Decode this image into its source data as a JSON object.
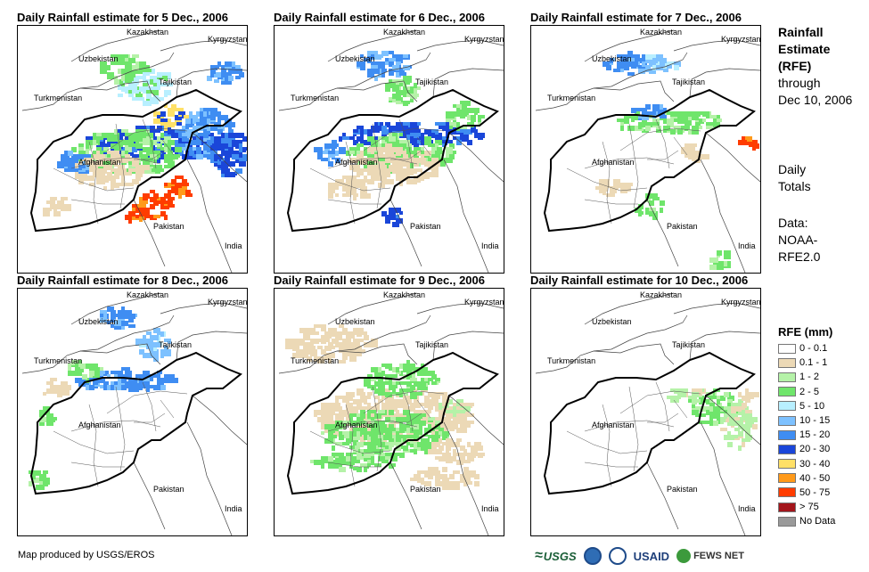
{
  "panels": [
    {
      "title": "Daily Rainfall estimate for 5 Dec., 2006",
      "rain_level": "heavy"
    },
    {
      "title": "Daily Rainfall estimate for 6 Dec., 2006",
      "rain_level": "moderate"
    },
    {
      "title": "Daily Rainfall estimate for 7 Dec., 2006",
      "rain_level": "light"
    },
    {
      "title": "Daily Rainfall estimate for 8 Dec., 2006",
      "rain_level": "light"
    },
    {
      "title": "Daily Rainfall estimate for 9 Dec., 2006",
      "rain_level": "widespread-light"
    },
    {
      "title": "Daily Rainfall estimate for 10 Dec., 2006",
      "rain_level": "minimal"
    }
  ],
  "country_labels": {
    "kazakhstan": "Kazakhstan",
    "kyrgyzstan": "Kyrgyzstan",
    "uzbekistan": "Uzbekistan",
    "tajikistan": "Tajikistan",
    "turkmenistan": "Turkmenistan",
    "afghanistan": "Afghanistan",
    "pakistan": "Pakistan",
    "india": "India"
  },
  "sidebar": {
    "heading_line1": "Rainfall",
    "heading_line2": "Estimate",
    "heading_line3": "(RFE)",
    "through": "through",
    "date": "Dec 10, 2006",
    "daily": "Daily",
    "totals": "Totals",
    "data_label": "Data:",
    "source1": "NOAA-",
    "source2": "RFE2.0"
  },
  "legend": {
    "title": "RFE (mm)",
    "items": [
      {
        "label": "0 - 0.1",
        "color": "#ffffff"
      },
      {
        "label": "0.1 - 1",
        "color": "#ecd9b6"
      },
      {
        "label": "1 - 2",
        "color": "#b5f2a8"
      },
      {
        "label": "2 - 5",
        "color": "#6fe56b"
      },
      {
        "label": "5 - 10",
        "color": "#b8efff"
      },
      {
        "label": "10 - 15",
        "color": "#7dc1ff"
      },
      {
        "label": "15 - 20",
        "color": "#3f8df2"
      },
      {
        "label": "20 - 30",
        "color": "#1a46d9"
      },
      {
        "label": "30 - 40",
        "color": "#ffe067"
      },
      {
        "label": "40 - 50",
        "color": "#ff9a1a"
      },
      {
        "label": "50 - 75",
        "color": "#ff3c00"
      },
      {
        "label": "> 75",
        "color": "#a3151b"
      },
      {
        "label": "No Data",
        "color": "#9a9a9a"
      }
    ]
  },
  "footer": {
    "credit": "Map produced by USGS/EROS"
  },
  "logos": {
    "usgs": "USGS",
    "usaid": "USAID",
    "fews": "FEWS NET"
  }
}
